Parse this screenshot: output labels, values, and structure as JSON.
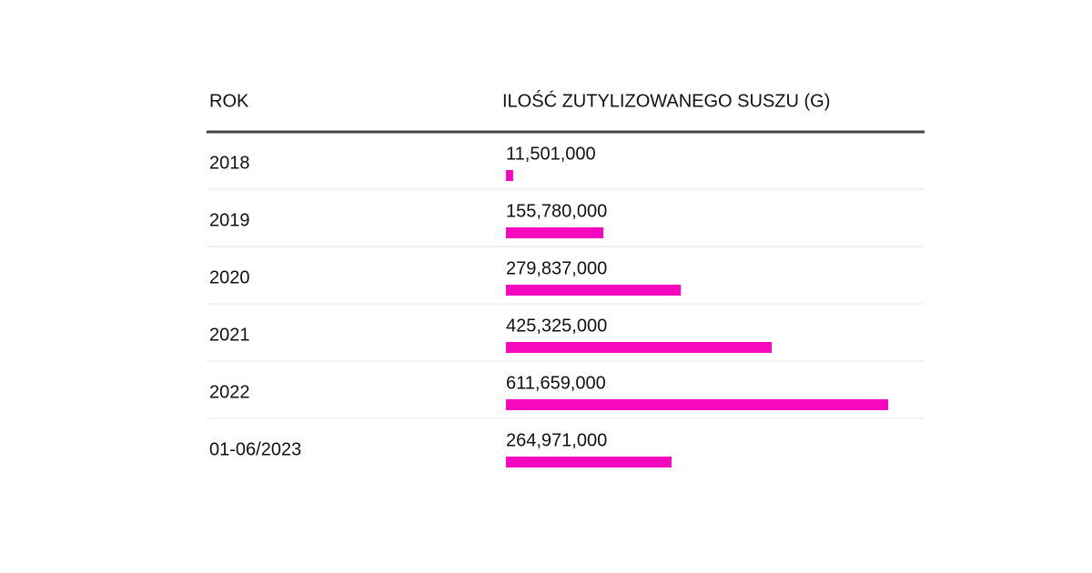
{
  "chart_data": {
    "type": "table-bar",
    "category_header": "ROK",
    "value_header": "ILOŚĆ ZUTYLIZOWANEGO SUSZU (G)",
    "categories": [
      "2018",
      "2019",
      "2020",
      "2021",
      "2022",
      "01-06/2023"
    ],
    "values": [
      11501000,
      155780000,
      279837000,
      425325000,
      611659000,
      264971000
    ],
    "value_labels": [
      "11,501,000",
      "155,780,000",
      "279,837,000",
      "425,325,000",
      "611,659,000",
      "264,971,000"
    ],
    "color": "#f707bd"
  }
}
